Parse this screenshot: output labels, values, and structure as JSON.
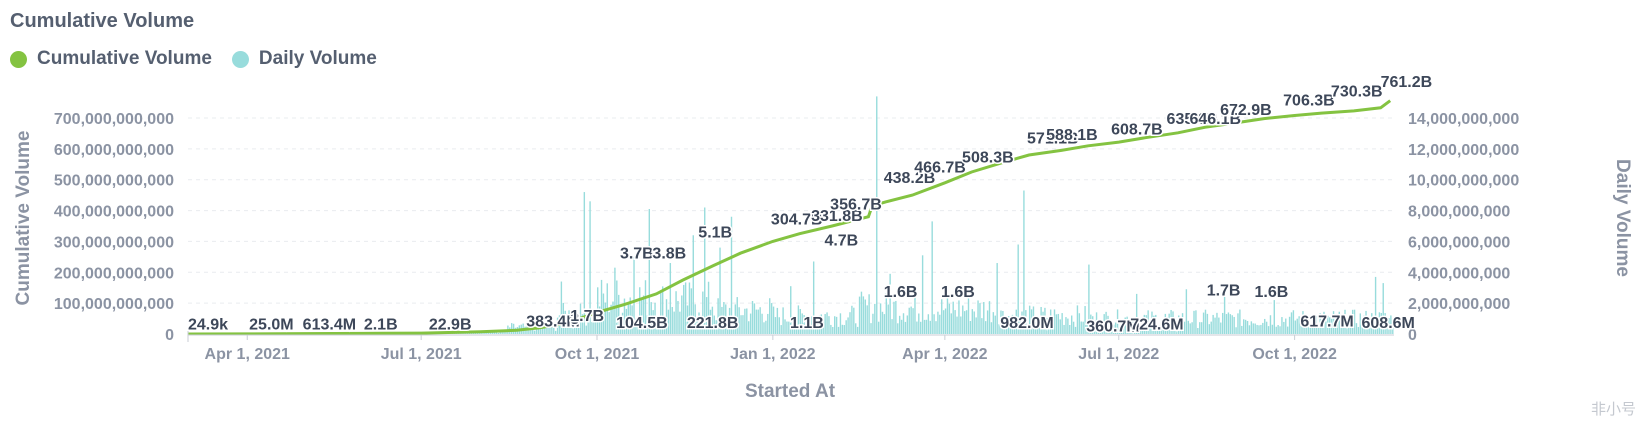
{
  "title": "Cumulative Volume",
  "legend": [
    {
      "label": "Cumulative Volume",
      "color": "#84c341"
    },
    {
      "label": "Daily Volume",
      "color": "#98dcdc"
    }
  ],
  "watermark": "非小号",
  "chart_data": {
    "type": "bar+line",
    "title": "Cumulative Volume",
    "xlabel": "Started At",
    "ylabel_left": "Cumulative Volume",
    "ylabel_right": "Daily Volume",
    "x_range": [
      "2021-03-01",
      "2022-11-22"
    ],
    "x_ticks": [
      {
        "date": "2021-04-01",
        "label": "Apr 1, 2021"
      },
      {
        "date": "2021-07-01",
        "label": "Jul 1, 2021"
      },
      {
        "date": "2021-10-01",
        "label": "Oct 1, 2021"
      },
      {
        "date": "2022-01-01",
        "label": "Jan 1, 2022"
      },
      {
        "date": "2022-04-01",
        "label": "Apr 1, 2022"
      },
      {
        "date": "2022-07-01",
        "label": "Jul 1, 2022"
      },
      {
        "date": "2022-10-01",
        "label": "Oct 1, 2022"
      }
    ],
    "y_left": {
      "range": [
        0,
        700000000000
      ],
      "ticks": [
        {
          "value": 0,
          "label": "0"
        },
        {
          "value": 100000000000,
          "label": "100,000,000,000"
        },
        {
          "value": 200000000000,
          "label": "200,000,000,000"
        },
        {
          "value": 300000000000,
          "label": "300,000,000,000"
        },
        {
          "value": 400000000000,
          "label": "400,000,000,000"
        },
        {
          "value": 500000000000,
          "label": "500,000,000,000"
        },
        {
          "value": 600000000000,
          "label": "600,000,000,000"
        },
        {
          "value": 700000000000,
          "label": "700,000,000,000"
        }
      ]
    },
    "y_right": {
      "range": [
        0,
        14000000000
      ],
      "ticks": [
        {
          "value": 0,
          "label": "0"
        },
        {
          "value": 2000000000,
          "label": "2,000,000,000"
        },
        {
          "value": 4000000000,
          "label": "4,000,000,000"
        },
        {
          "value": 6000000000,
          "label": "6,000,000,000"
        },
        {
          "value": 8000000000,
          "label": "8,000,000,000"
        },
        {
          "value": 10000000000,
          "label": "10,000,000,000"
        },
        {
          "value": 12000000000,
          "label": "12,000,000,000"
        },
        {
          "value": 14000000000,
          "label": "14,000,000,000"
        }
      ]
    },
    "cumulative_series": {
      "name": "Cumulative Volume",
      "color": "#84c341",
      "points": [
        [
          "2021-03-01",
          0
        ],
        [
          "2021-04-01",
          300000000.0
        ],
        [
          "2021-05-01",
          1200000000.0
        ],
        [
          "2021-06-01",
          2100000000.0
        ],
        [
          "2021-07-01",
          3000000000.0
        ],
        [
          "2021-08-01",
          7000000000.0
        ],
        [
          "2021-08-20",
          12000000000.0
        ],
        [
          "2021-09-01",
          20000000000.0
        ],
        [
          "2021-09-15",
          35000000000.0
        ],
        [
          "2021-10-01",
          70000000000.0
        ],
        [
          "2021-10-15",
          95000000000.0
        ],
        [
          "2021-11-01",
          130000000000.0
        ],
        [
          "2021-11-15",
          175000000000.0
        ],
        [
          "2021-12-01",
          222000000000.0
        ],
        [
          "2021-12-15",
          262000000000.0
        ],
        [
          "2022-01-01",
          300000000000.0
        ],
        [
          "2022-01-15",
          325000000000.0
        ],
        [
          "2022-02-01",
          350000000000.0
        ],
        [
          "2022-02-15",
          372000000000.0
        ],
        [
          "2022-02-20",
          380000000000.0
        ],
        [
          "2022-02-22",
          415000000000.0
        ],
        [
          "2022-03-01",
          428000000000.0
        ],
        [
          "2022-03-15",
          450000000000.0
        ],
        [
          "2022-04-01",
          490000000000.0
        ],
        [
          "2022-04-15",
          525000000000.0
        ],
        [
          "2022-05-01",
          555000000000.0
        ],
        [
          "2022-05-15",
          580000000000.0
        ],
        [
          "2022-06-01",
          595000000000.0
        ],
        [
          "2022-06-15",
          610000000000.0
        ],
        [
          "2022-07-01",
          622000000000.0
        ],
        [
          "2022-07-15",
          636000000000.0
        ],
        [
          "2022-08-01",
          652000000000.0
        ],
        [
          "2022-08-15",
          670000000000.0
        ],
        [
          "2022-09-01",
          685000000000.0
        ],
        [
          "2022-09-15",
          698000000000.0
        ],
        [
          "2022-10-01",
          708000000000.0
        ],
        [
          "2022-10-15",
          716000000000.0
        ],
        [
          "2022-11-01",
          723000000000.0
        ],
        [
          "2022-11-15",
          733000000000.0
        ],
        [
          "2022-11-20",
          756000000000.0
        ]
      ]
    },
    "daily_series": {
      "name": "Daily Volume",
      "color": "#98dcdc",
      "note_values": "approximate daily volume envelope by period",
      "periods": [
        {
          "start": "2021-03-01",
          "end": "2021-07-15",
          "level": 20000000.0
        },
        {
          "start": "2021-07-15",
          "end": "2021-08-15",
          "level": 150000000.0
        },
        {
          "start": "2021-08-15",
          "end": "2021-09-10",
          "level": 500000000.0
        },
        {
          "start": "2021-09-10",
          "end": "2021-10-01",
          "level": 1400000000.0
        },
        {
          "start": "2021-10-01",
          "end": "2021-11-01",
          "level": 2600000000.0
        },
        {
          "start": "2021-11-01",
          "end": "2021-12-01",
          "level": 2400000000.0
        },
        {
          "start": "2021-12-01",
          "end": "2022-01-01",
          "level": 1700000000.0
        },
        {
          "start": "2022-01-01",
          "end": "2022-02-15",
          "level": 1300000000.0
        },
        {
          "start": "2022-02-15",
          "end": "2022-03-15",
          "level": 1900000000.0
        },
        {
          "start": "2022-03-15",
          "end": "2022-05-01",
          "level": 1800000000.0
        },
        {
          "start": "2022-05-01",
          "end": "2022-06-15",
          "level": 1300000000.0
        },
        {
          "start": "2022-06-15",
          "end": "2022-11-22",
          "level": 1100000000.0
        }
      ],
      "spikes": [
        [
          "2021-09-12",
          3400000000.0
        ],
        [
          "2021-09-24",
          9200000000.0
        ],
        [
          "2021-09-27",
          8600000000.0
        ],
        [
          "2021-10-10",
          4300000000.0
        ],
        [
          "2021-10-20",
          5000000000.0
        ],
        [
          "2021-10-28",
          8100000000.0
        ],
        [
          "2021-11-08",
          4600000000.0
        ],
        [
          "2021-11-20",
          6400000000.0
        ],
        [
          "2021-11-26",
          8200000000.0
        ],
        [
          "2021-12-04",
          5600000000.0
        ],
        [
          "2021-12-10",
          7600000000.0
        ],
        [
          "2022-01-10",
          3100000000.0
        ],
        [
          "2022-01-22",
          4700000000.0
        ],
        [
          "2022-02-24",
          15400000000.0
        ],
        [
          "2022-03-03",
          3900000000.0
        ],
        [
          "2022-03-20",
          5100000000.0
        ],
        [
          "2022-03-25",
          7300000000.0
        ],
        [
          "2022-04-28",
          4600000000.0
        ],
        [
          "2022-05-09",
          5800000000.0
        ],
        [
          "2022-05-12",
          9300000000.0
        ],
        [
          "2022-06-15",
          4500000000.0
        ],
        [
          "2022-07-10",
          2600000000.0
        ],
        [
          "2022-08-05",
          2900000000.0
        ],
        [
          "2022-08-25",
          2400000000.0
        ],
        [
          "2022-09-20",
          2200000000.0
        ],
        [
          "2022-11-12",
          3700000000.0
        ],
        [
          "2022-11-16",
          3300000000.0
        ]
      ]
    },
    "annotations": [
      {
        "date": "2021-03-01",
        "value": 15000000000.0,
        "label": "24.9k"
      },
      {
        "date": "2021-04-02",
        "value": 15000000000.0,
        "label": "25.0M"
      },
      {
        "date": "2021-04-30",
        "value": 15000000000.0,
        "label": "613.4M"
      },
      {
        "date": "2021-06-01",
        "value": 15000000000.0,
        "label": "2.1B"
      },
      {
        "date": "2021-07-05",
        "value": 15000000000.0,
        "label": "22.9B"
      },
      {
        "date": "2021-08-25",
        "value": 25000000000.0,
        "label": "383.4M"
      },
      {
        "date": "2021-09-17",
        "value": 32000000000.0,
        "label": "3"
      },
      {
        "date": "2021-09-17",
        "value": 42000000000.0,
        "label": "1.7B"
      },
      {
        "date": "2021-10-11",
        "value": 20000000000.0,
        "label": "104.5B"
      },
      {
        "date": "2021-10-13",
        "value": 245000000000.0,
        "label": "3.7B"
      },
      {
        "date": "2021-10-30",
        "value": 245000000000.0,
        "label": "3.8B"
      },
      {
        "date": "2021-11-17",
        "value": 20000000000.0,
        "label": "221.8B"
      },
      {
        "date": "2021-11-23",
        "value": 313000000000.0,
        "label": "5.1B"
      },
      {
        "date": "2021-12-31",
        "value": 355000000000.0,
        "label": "304.7B"
      },
      {
        "date": "2022-01-21",
        "value": 367000000000.0,
        "label": "331.8B"
      },
      {
        "date": "2022-01-31",
        "value": 404000000000.0,
        "label": "356.7B"
      },
      {
        "date": "2022-01-10",
        "value": 20000000000.0,
        "label": "1.1B"
      },
      {
        "date": "2022-01-28",
        "value": 287000000000.0,
        "label": "4.7B"
      },
      {
        "date": "2022-02-28",
        "value": 490000000000.0,
        "label": "438.2B"
      },
      {
        "date": "2022-03-16",
        "value": 523000000000.0,
        "label": "466.7B"
      },
      {
        "date": "2022-02-28",
        "value": 120000000000.0,
        "label": "1.6B"
      },
      {
        "date": "2022-03-30",
        "value": 120000000000.0,
        "label": "1.6B"
      },
      {
        "date": "2022-04-10",
        "value": 555000000000.0,
        "label": "508.3B"
      },
      {
        "date": "2022-04-30",
        "value": 20000000000.0,
        "label": "982.0M"
      },
      {
        "date": "2022-05-14",
        "value": 618000000000.0,
        "label": "571.1B"
      },
      {
        "date": "2022-05-24",
        "value": 628000000000.0,
        "label": "588.1B"
      },
      {
        "date": "2022-06-14",
        "value": 8000000000.0,
        "label": "360.7M"
      },
      {
        "date": "2022-06-27",
        "value": 647000000000.0,
        "label": "608.7B"
      },
      {
        "date": "2022-07-07",
        "value": 15000000000.0,
        "label": "724.6M"
      },
      {
        "date": "2022-07-26",
        "value": 680000000000.0,
        "label": "635.6B"
      },
      {
        "date": "2022-08-07",
        "value": 680000000000.0,
        "label": "646.1B"
      },
      {
        "date": "2022-08-16",
        "value": 125000000000.0,
        "label": "1.7B"
      },
      {
        "date": "2022-08-23",
        "value": 710000000000.0,
        "label": "672.9B"
      },
      {
        "date": "2022-09-10",
        "value": 120000000000.0,
        "label": "1.6B"
      },
      {
        "date": "2022-09-25",
        "value": 740000000000.0,
        "label": "706.3B"
      },
      {
        "date": "2022-10-04",
        "value": 25000000000.0,
        "label": "617.7M"
      },
      {
        "date": "2022-10-20",
        "value": 770000000000.0,
        "label": "730.3B"
      },
      {
        "date": "2022-11-05",
        "value": 20000000000.0,
        "label": "608.6M"
      },
      {
        "date": "2022-11-15",
        "value": 800000000000.0,
        "label": "761.2B"
      }
    ],
    "grid": "horizontal",
    "legend_position": "top-left"
  }
}
